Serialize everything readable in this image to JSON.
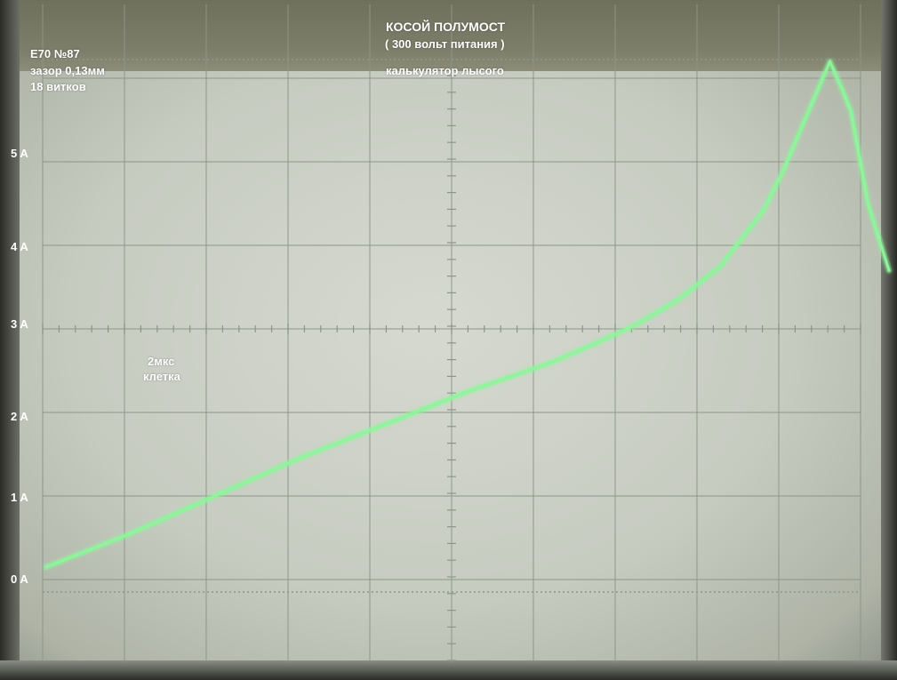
{
  "header": {
    "title": "КОСОЙ ПОЛУМОСТ",
    "subtitle": "( 300 вольт питания )",
    "credit": "калькулятор лысого"
  },
  "info": {
    "line1": "E70 №87",
    "line2": "зазор 0,13мм",
    "line3": "18 витков"
  },
  "timebase": {
    "line1": "2мкс",
    "line2": "клетка"
  },
  "colors": {
    "trace": "#8df59a",
    "grid": "#8c9688",
    "label": "#ffffff"
  },
  "chart_data": {
    "type": "line",
    "title": "КОСОЙ ПОЛУМОСТ",
    "xlabel": "2мкс клетка",
    "ylabel": "",
    "x_unit": "мкс",
    "y_unit": "A",
    "xlim": [
      0,
      20
    ],
    "ylim": [
      -0.5,
      6.2
    ],
    "yticks": [
      "0 A",
      "1 A",
      "2 A",
      "3 A",
      "4 A",
      "5 A"
    ],
    "grid": true,
    "series": [
      {
        "x": [
          0,
          1,
          2,
          4,
          6,
          8,
          10,
          12,
          13,
          14,
          15,
          16,
          17,
          17.5,
          18,
          18.6,
          18.9,
          19.1,
          19.5,
          20
        ],
        "values": [
          0.15,
          0.35,
          0.55,
          1.0,
          1.45,
          1.85,
          2.25,
          2.6,
          2.82,
          3.05,
          3.35,
          3.75,
          4.4,
          4.9,
          5.5,
          6.2,
          5.85,
          5.6,
          4.5,
          3.7
        ]
      }
    ]
  }
}
